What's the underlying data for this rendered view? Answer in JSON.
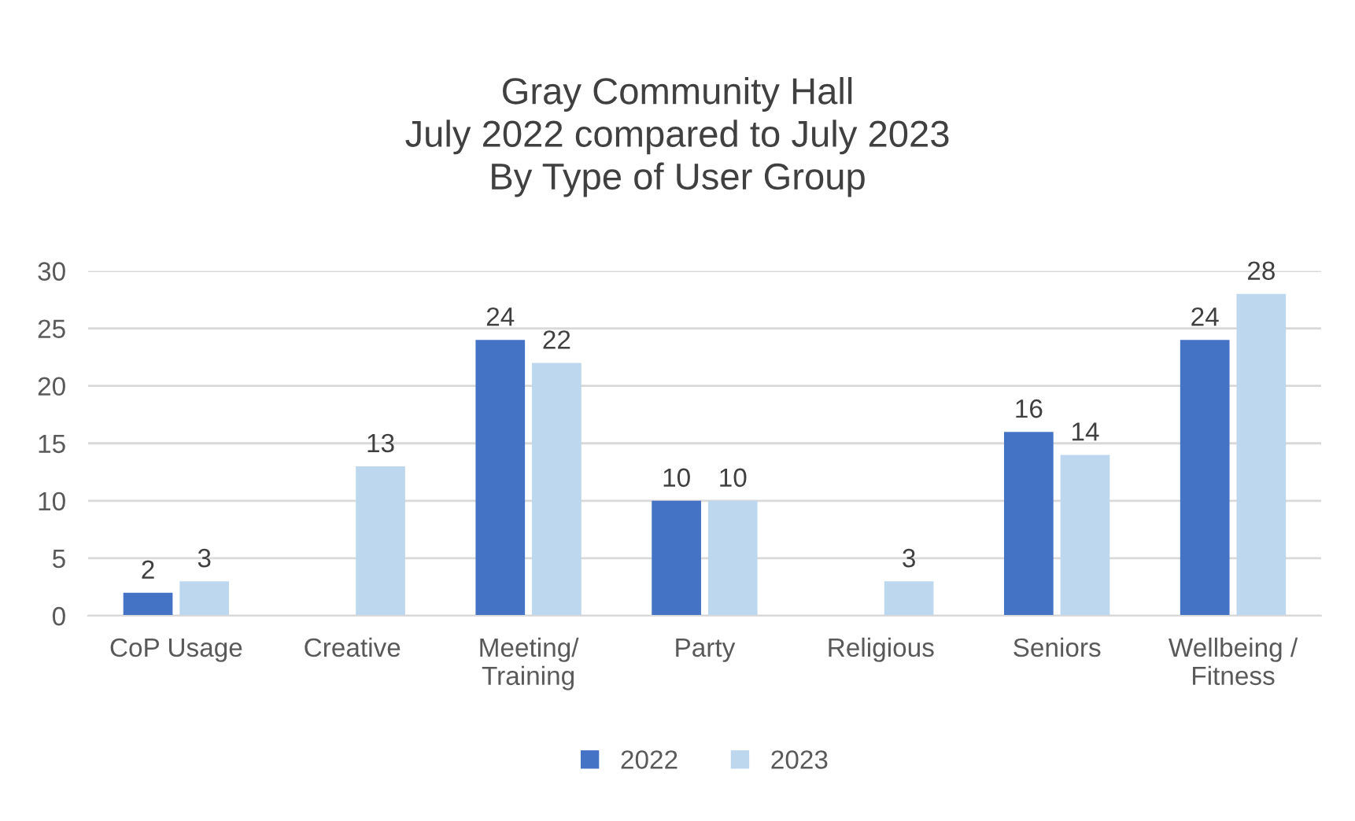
{
  "chart_data": {
    "type": "bar",
    "title": "Gray Community Hall\nJuly 2022 compared to July 2023\nBy Type of User Group",
    "categories": [
      "CoP Usage",
      "Creative",
      "Meeting/\nTraining",
      "Party",
      "Religious",
      "Seniors",
      "Wellbeing /\nFitness"
    ],
    "series": [
      {
        "name": "2022",
        "color": "#4472c4",
        "values": [
          2,
          null,
          24,
          10,
          null,
          16,
          24
        ]
      },
      {
        "name": "2023",
        "color": "#bdd7ee",
        "values": [
          3,
          13,
          22,
          10,
          3,
          14,
          28
        ]
      }
    ],
    "ylim": [
      0,
      30
    ],
    "yticks": [
      0,
      5,
      10,
      15,
      20,
      25,
      30
    ],
    "grid": "y",
    "legend": "bottom",
    "data_labels": true
  }
}
